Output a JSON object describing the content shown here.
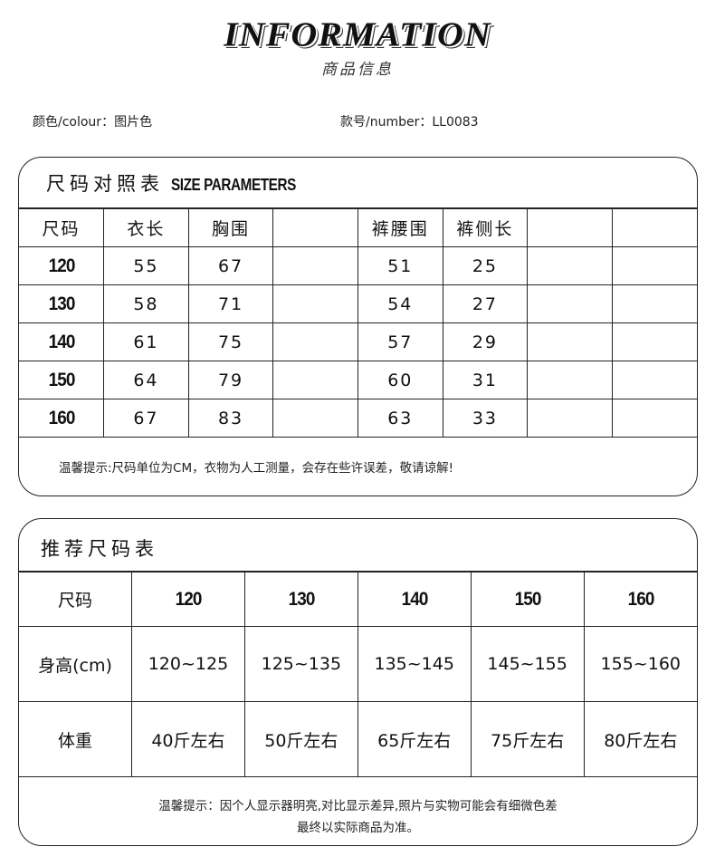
{
  "header": {
    "title": "INFORMATION",
    "subtitle": "商品信息"
  },
  "info": {
    "colour": "颜色/colour：图片色",
    "number": "款号/number：LL0083"
  },
  "size_table": {
    "title_cn": "尺码对照表",
    "title_en": "SIZE PARAMETERS",
    "headers": [
      "尺码",
      "衣长",
      "胸围",
      "",
      "裤腰围",
      "裤侧长",
      "",
      ""
    ],
    "rows": [
      [
        "120",
        "55",
        "67",
        "",
        "51",
        "25",
        "",
        ""
      ],
      [
        "130",
        "58",
        "71",
        "",
        "54",
        "27",
        "",
        ""
      ],
      [
        "140",
        "61",
        "75",
        "",
        "57",
        "29",
        "",
        ""
      ],
      [
        "150",
        "64",
        "79",
        "",
        "60",
        "31",
        "",
        ""
      ],
      [
        "160",
        "67",
        "83",
        "",
        "63",
        "33",
        "",
        ""
      ]
    ],
    "note": "温馨提示:尺码单位为CM，衣物为人工测量，会存在些许误差，敬请谅解!"
  },
  "rec_table": {
    "title": "推荐尺码表",
    "header": [
      "尺码",
      "120",
      "130",
      "140",
      "150",
      "160"
    ],
    "height": [
      "身高(cm)",
      "120~125",
      "125~135",
      "135~145",
      "145~155",
      "155~160"
    ],
    "weight": [
      "体重",
      "40斤左右",
      "50斤左右",
      "65斤左右",
      "75斤左右",
      "80斤左右"
    ],
    "note1": "温馨提示：因个人显示器明亮,对比显示差异,照片与实物可能会有细微色差",
    "note2": "最终以实际商品为准。"
  }
}
